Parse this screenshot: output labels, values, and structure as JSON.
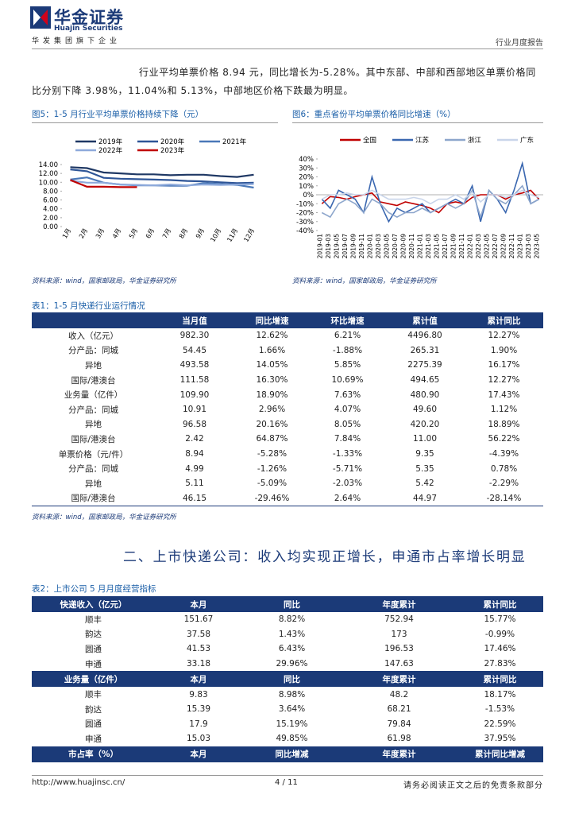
{
  "header": {
    "logo_cn": "华金证券",
    "logo_en": "Huajin Securities",
    "slogan": "华发集团旗下企业",
    "report_type": "行业月度报告"
  },
  "paragraph": "行业平均单票价格 8.94 元，同比增长为-5.28%。其中东部、中部和西部地区单票价格同比分别下降 3.98%，11.04%和 5.13%，中部地区价格下跌最为明显。",
  "chart_data": [
    {
      "type": "line",
      "title": "图5：1-5 月行业平均单票价格持续下降（元）",
      "source": "资料来源：wind，国家邮政局，华金证券研究所",
      "categories": [
        "1月",
        "2月",
        "3月",
        "4月",
        "5月",
        "6月",
        "7月",
        "8月",
        "9月",
        "10月",
        "11月",
        "12月"
      ],
      "series": [
        {
          "name": "2019年",
          "color": "#1f3864",
          "values": [
            13.4,
            13.2,
            12.2,
            12.0,
            11.8,
            11.8,
            11.6,
            11.7,
            11.7,
            11.4,
            11.2,
            11.7
          ]
        },
        {
          "name": "2020年",
          "color": "#2e5597",
          "values": [
            12.9,
            12.5,
            11.0,
            10.8,
            10.7,
            10.6,
            10.5,
            10.3,
            10.2,
            10.0,
            9.8,
            9.9
          ]
        },
        {
          "name": "2021年",
          "color": "#4a78b8",
          "values": [
            10.6,
            11.1,
            9.9,
            9.5,
            9.3,
            9.3,
            9.2,
            9.2,
            9.8,
            9.6,
            9.4,
            8.8
          ]
        },
        {
          "name": "2022年",
          "color": "#8eaadb",
          "values": [
            10.4,
            9.9,
            9.9,
            9.5,
            9.4,
            9.3,
            9.5,
            9.3,
            9.5,
            9.4,
            9.5,
            9.6
          ]
        },
        {
          "name": "2023年",
          "color": "#c00000",
          "values": [
            10.5,
            9.0,
            9.0,
            8.9,
            8.9,
            null,
            null,
            null,
            null,
            null,
            null,
            null
          ]
        }
      ],
      "ylim": [
        0,
        14
      ],
      "yticks": [
        {
          "value": 0,
          "label": "0.00"
        },
        {
          "value": 2,
          "label": "2.00"
        },
        {
          "value": 4,
          "label": "4.00"
        },
        {
          "value": 6,
          "label": "6.00"
        },
        {
          "value": 8,
          "label": "8.00"
        },
        {
          "value": 10,
          "label": "10.00"
        },
        {
          "value": 12,
          "label": "12.00"
        },
        {
          "value": 14,
          "label": "14.00"
        }
      ]
    },
    {
      "type": "line",
      "title": "图6：重点省份平均单票价格同比增速（%）",
      "source": "资料来源：wind，国家邮政局，华金证券研究所",
      "categories": [
        "2019-01",
        "2019-03",
        "2019-05",
        "2019-07",
        "2019-09",
        "2019-11",
        "2020-01",
        "2020-03",
        "2020-05",
        "2020-07",
        "2020-09",
        "2020-11",
        "2021-01",
        "2021-03",
        "2021-05",
        "2021-07",
        "2021-09",
        "2021-11",
        "2022-01",
        "2022-03",
        "2022-05",
        "2022-07",
        "2022-09",
        "2022-11",
        "2023-01",
        "2023-03",
        "2023-05"
      ],
      "series": [
        {
          "name": "全国",
          "color": "#c00000",
          "values": [
            -10,
            -2,
            -3,
            -5,
            -2,
            0,
            2,
            -8,
            -10,
            -12,
            -8,
            -10,
            -12,
            -15,
            -20,
            -10,
            -8,
            -10,
            -3,
            0,
            0,
            0,
            -5,
            0,
            2,
            5,
            -5
          ]
        },
        {
          "name": "江苏",
          "color": "#3a67b0",
          "values": [
            -5,
            -15,
            5,
            0,
            -5,
            -20,
            20,
            -10,
            -30,
            -15,
            -20,
            -15,
            -10,
            -20,
            -15,
            -10,
            -5,
            -10,
            10,
            -30,
            5,
            -5,
            -20,
            5,
            35,
            -10,
            -5
          ]
        },
        {
          "name": "浙江",
          "color": "#8da6cc",
          "values": [
            -20,
            -25,
            -10,
            -5,
            -10,
            -20,
            -5,
            -10,
            -20,
            -25,
            -20,
            -20,
            -15,
            -20,
            -15,
            -10,
            -15,
            -10,
            5,
            -25,
            5,
            -5,
            -10,
            0,
            10,
            -10,
            -5
          ]
        },
        {
          "name": "广东",
          "color": "#c9d5ea",
          "values": [
            -5,
            0,
            0,
            2,
            0,
            0,
            5,
            0,
            -5,
            -5,
            -5,
            -3,
            -5,
            -10,
            -5,
            -5,
            0,
            -5,
            3,
            -8,
            0,
            0,
            -3,
            0,
            5,
            0,
            -3
          ]
        }
      ],
      "ylim": [
        -40,
        40
      ],
      "yticks": [
        {
          "value": -40,
          "label": "-40%"
        },
        {
          "value": -30,
          "label": "-30%"
        },
        {
          "value": -20,
          "label": "-20%"
        },
        {
          "value": -10,
          "label": "-10%"
        },
        {
          "value": 0,
          "label": "0%"
        },
        {
          "value": 10,
          "label": "10%"
        },
        {
          "value": 20,
          "label": "20%"
        },
        {
          "value": 30,
          "label": "30%"
        },
        {
          "value": 40,
          "label": "40%"
        }
      ]
    }
  ],
  "tables": [
    {
      "title": "表1：1-5 月快递行业运行情况",
      "source": "资料来源：wind，国家邮政局，华金证券研究所",
      "header": [
        "当月值",
        "同比增速",
        "环比增速",
        "累计值",
        "累计同比"
      ],
      "rows": [
        [
          "收入（亿元）",
          "982.30",
          "12.62%",
          "6.21%",
          "4496.80",
          "12.27%"
        ],
        [
          "分产品：同城",
          "54.45",
          "1.66%",
          "-1.88%",
          "265.31",
          "1.90%"
        ],
        [
          "异地",
          "493.58",
          "14.05%",
          "5.85%",
          "2275.39",
          "16.17%"
        ],
        [
          "国际/港澳台",
          "111.58",
          "16.30%",
          "10.69%",
          "494.65",
          "12.27%"
        ],
        [
          "业务量（亿件）",
          "109.90",
          "18.90%",
          "7.63%",
          "480.90",
          "17.43%"
        ],
        [
          "分产品：同城",
          "10.91",
          "2.96%",
          "4.07%",
          "49.60",
          "1.12%"
        ],
        [
          "异地",
          "96.58",
          "20.16%",
          "8.05%",
          "420.20",
          "18.89%"
        ],
        [
          "国际/港澳台",
          "2.42",
          "64.87%",
          "7.84%",
          "11.00",
          "56.22%"
        ],
        [
          "单票价格（元/件）",
          "8.94",
          "-5.28%",
          "-1.33%",
          "9.35",
          "-4.39%"
        ],
        [
          "分产品：同城",
          "4.99",
          "-1.26%",
          "-5.71%",
          "5.35",
          "0.78%"
        ],
        [
          "异地",
          "5.11",
          "-5.09%",
          "-2.03%",
          "5.42",
          "-2.29%"
        ],
        [
          "国际/港澳台",
          "46.15",
          "-29.46%",
          "2.64%",
          "44.97",
          "-28.14%"
        ]
      ]
    },
    {
      "title": "表2：上市公司 5 月月度经营指标",
      "sections": [
        {
          "header": [
            "快递收入（亿元）",
            "本月",
            "同比",
            "年度累计",
            "累计同比"
          ],
          "rows": [
            [
              "顺丰",
              "151.67",
              "8.82%",
              "752.94",
              "15.77%"
            ],
            [
              "韵达",
              "37.58",
              "1.43%",
              "173",
              "-0.99%"
            ],
            [
              "圆通",
              "41.53",
              "6.43%",
              "196.53",
              "17.46%"
            ],
            [
              "申通",
              "33.18",
              "29.96%",
              "147.63",
              "27.83%"
            ]
          ]
        },
        {
          "header": [
            "业务量（亿件）",
            "本月",
            "同比",
            "年度累计",
            "累计同比"
          ],
          "rows": [
            [
              "顺丰",
              "9.83",
              "8.98%",
              "48.2",
              "18.17%"
            ],
            [
              "韵达",
              "15.39",
              "3.64%",
              "68.21",
              "-1.53%"
            ],
            [
              "圆通",
              "17.9",
              "15.19%",
              "79.84",
              "22.59%"
            ],
            [
              "申通",
              "15.03",
              "49.85%",
              "61.98",
              "37.95%"
            ]
          ]
        },
        {
          "header": [
            "市占率（%）",
            "本月",
            "同比增减",
            "年度累计",
            "累计同比增减"
          ],
          "rows": []
        }
      ]
    }
  ],
  "section_heading": "二、上市快递公司：收入均实现正增长，申通市占率增长明显",
  "footer": {
    "url": "http://www.huajinsc.cn/",
    "page": "4 / 11",
    "disclaimer": "请务必阅读正文之后的免责条款部分"
  }
}
